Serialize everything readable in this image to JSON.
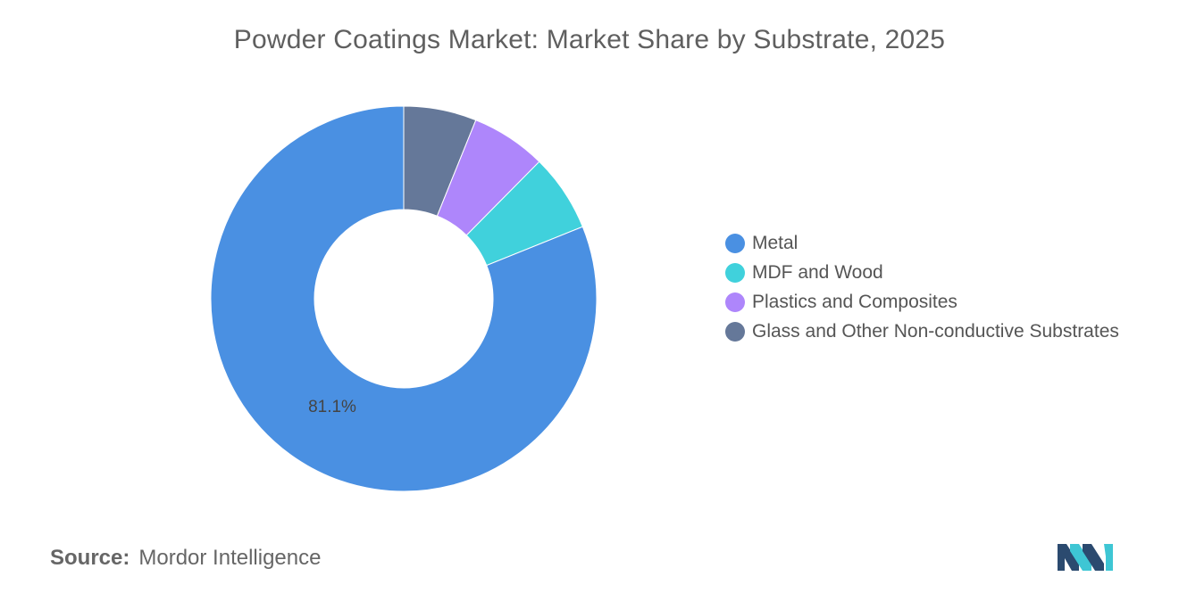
{
  "title": "Powder Coatings Market: Market Share by Substrate, 2025",
  "source": {
    "label": "Source:",
    "name": "Mordor Intelligence"
  },
  "logo": {
    "icon": "mordor-intelligence-logo-icon",
    "colors": [
      "#2b4a6f",
      "#3ec6d4"
    ]
  },
  "chart_data": {
    "type": "pie",
    "style": "donut",
    "title": "Powder Coatings Market: Market Share by Substrate, 2025",
    "legend_placement": "right",
    "categories": [
      "Metal",
      "MDF and Wood",
      "Plastics and Composites",
      "Glass and Other Non-conductive Substrates"
    ],
    "values": [
      81.1,
      6.5,
      6.3,
      6.1
    ],
    "colors": [
      "#4a90e2",
      "#40d1dc",
      "#ae86fb",
      "#657899"
    ],
    "data_labels": [
      "81.1%",
      "",
      "",
      ""
    ]
  }
}
